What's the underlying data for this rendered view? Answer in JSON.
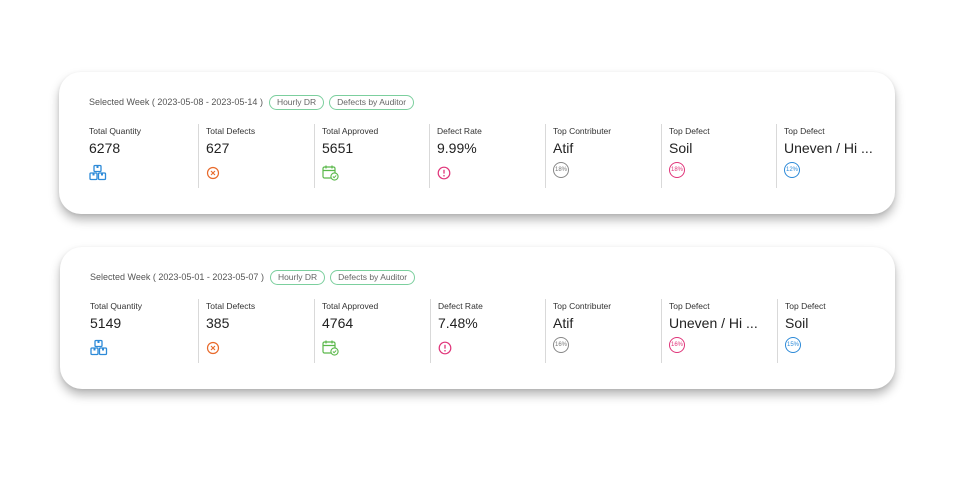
{
  "colors": {
    "chip_border": "#7ccf9e",
    "quantity_icon": "#2d8ad8",
    "defects_icon": "#e8692a",
    "approved_icon": "#5ab84a",
    "rate_icon": "#e0357a",
    "contributor_badge": "#888888",
    "top_defect_badge_1": "#e0357a",
    "top_defect_badge_2": "#2d8ad8"
  },
  "cards": [
    {
      "week_label": "Selected Week ( 2023-05-08 - 2023-05-14 )",
      "chips": [
        "Hourly DR",
        "Defects by Auditor"
      ],
      "total_quantity": {
        "label": "Total Quantity",
        "value": "6278",
        "icon": "boxes-icon"
      },
      "total_defects": {
        "label": "Total Defects",
        "value": "627",
        "icon": "x-circle-icon"
      },
      "total_approved": {
        "label": "Total Approved",
        "value": "5651",
        "icon": "calendar-check-icon"
      },
      "defect_rate": {
        "label": "Defect Rate",
        "value": "9.99%",
        "icon": "exclamation-circle-icon"
      },
      "top_contributor": {
        "label": "Top Contributer",
        "value": "Atif",
        "badge": "18%"
      },
      "top_defect_1": {
        "label": "Top Defect",
        "value": "Soil",
        "badge": "18%"
      },
      "top_defect_2": {
        "label": "Top Defect",
        "value": "Uneven / Hi ...",
        "badge": "12%"
      }
    },
    {
      "week_label": "Selected Week ( 2023-05-01 - 2023-05-07 )",
      "chips": [
        "Hourly DR",
        "Defects by Auditor"
      ],
      "total_quantity": {
        "label": "Total Quantity",
        "value": "5149",
        "icon": "boxes-icon"
      },
      "total_defects": {
        "label": "Total Defects",
        "value": "385",
        "icon": "x-circle-icon"
      },
      "total_approved": {
        "label": "Total Approved",
        "value": "4764",
        "icon": "calendar-check-icon"
      },
      "defect_rate": {
        "label": "Defect Rate",
        "value": "7.48%",
        "icon": "exclamation-circle-icon"
      },
      "top_contributor": {
        "label": "Top Contributer",
        "value": "Atif",
        "badge": "16%"
      },
      "top_defect_1": {
        "label": "Top Defect",
        "value": "Uneven / Hi ...",
        "badge": "16%"
      },
      "top_defect_2": {
        "label": "Top Defect",
        "value": "Soil",
        "badge": "15%"
      }
    }
  ]
}
